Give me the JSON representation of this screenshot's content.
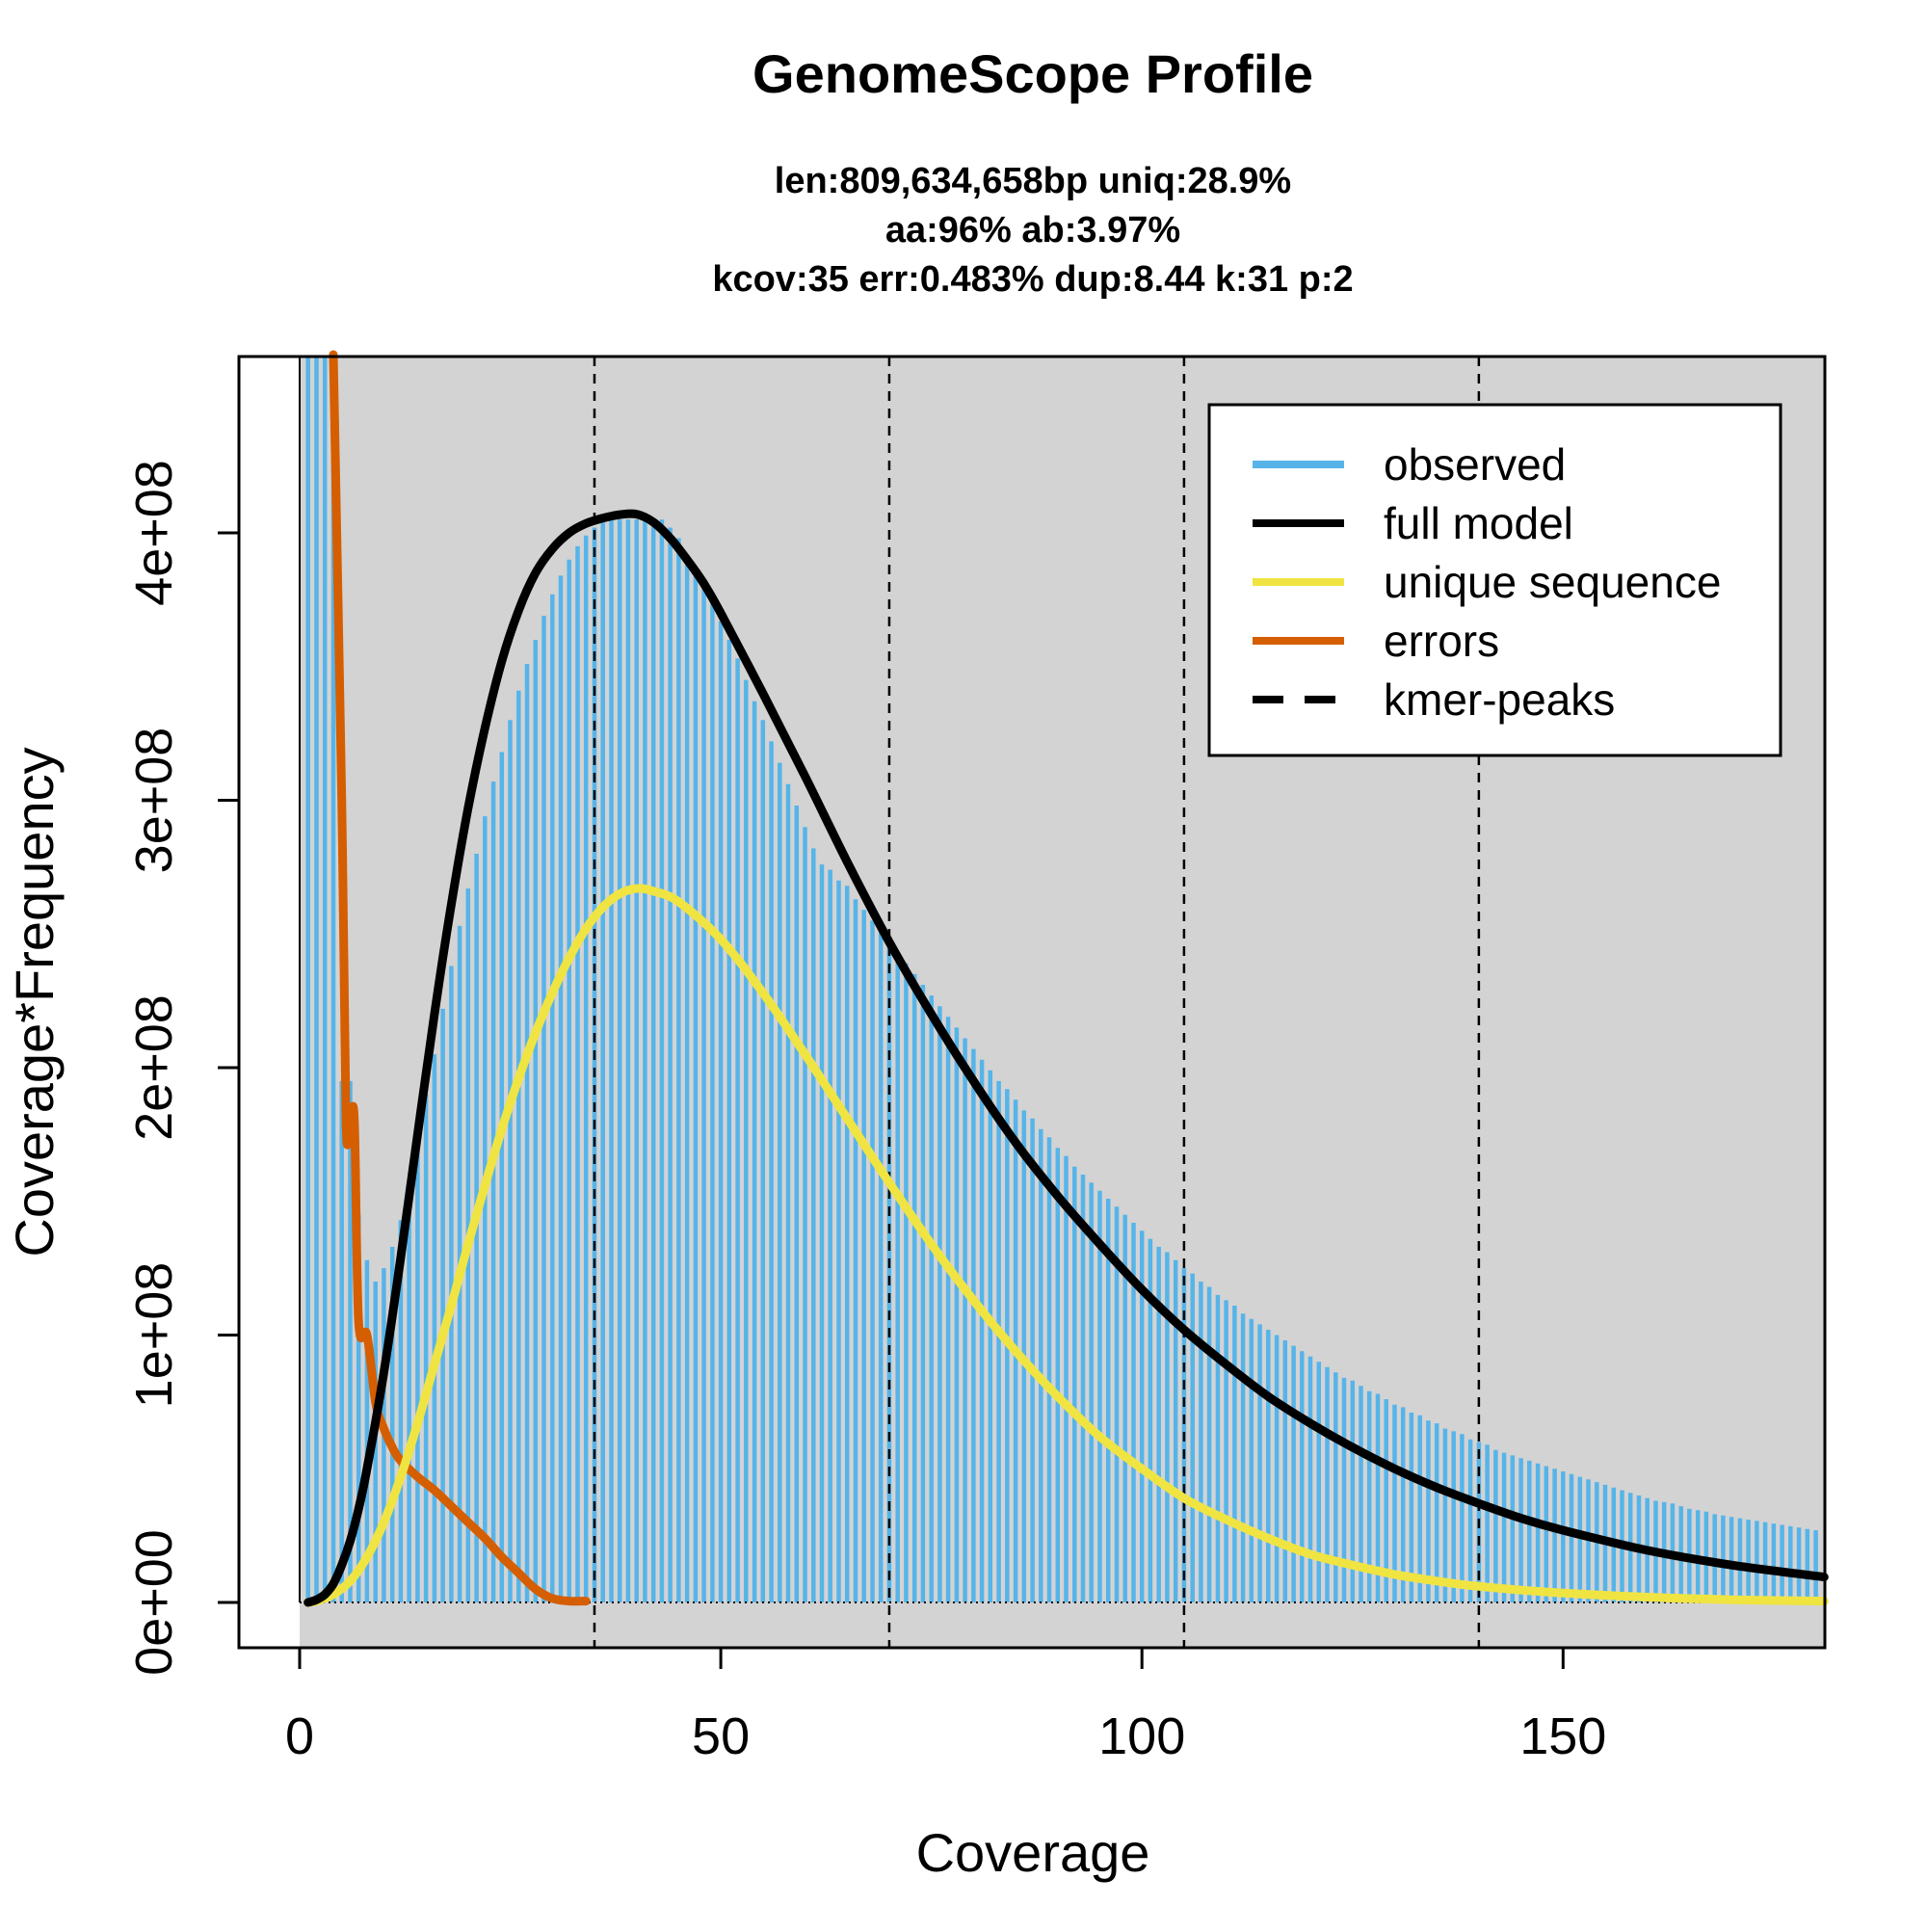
{
  "chart_data": {
    "type": "bar",
    "title": "GenomeScope Profile",
    "subtitle_lines": [
      "len:809,634,658bp uniq:28.9%",
      "aa:96% ab:3.97%",
      "kcov:35 err:0.483%  dup:8.44  k:31 p:2"
    ],
    "xlabel": "Coverage",
    "ylabel": "Coverage*Frequency",
    "xlim": [
      0,
      181
    ],
    "ylim": [
      0,
      467000000
    ],
    "x_ticks": [
      0,
      50,
      100,
      150
    ],
    "x_tick_labels": [
      "0",
      "50",
      "100",
      "150"
    ],
    "y_ticks": [
      0,
      100000000,
      200000000,
      300000000,
      400000000
    ],
    "y_tick_labels": [
      "0e+00",
      "1e+08",
      "2e+08",
      "3e+08",
      "4e+08"
    ],
    "background_color": "#d3d3d3",
    "grid": false,
    "legend_position": "top-right",
    "legend": [
      {
        "label": "observed",
        "color": "#56b4e9",
        "style": "solid"
      },
      {
        "label": "full model",
        "color": "#000000",
        "style": "solid"
      },
      {
        "label": "unique sequence",
        "color": "#f0e442",
        "style": "solid"
      },
      {
        "label": "errors",
        "color": "#d55e00",
        "style": "solid"
      },
      {
        "label": "kmer-peaks",
        "color": "#000000",
        "style": "dashed"
      }
    ],
    "kmer_peaks": [
      35,
      70,
      105,
      140
    ],
    "observed": {
      "name": "observed",
      "color": "#56b4e9",
      "x_start": 1,
      "x_step": 1,
      "values": [
        900000000,
        750000000,
        600000000,
        480000000,
        195000000,
        195000000,
        145000000,
        128000000,
        120000000,
        125000000,
        133000000,
        143000000,
        157000000,
        173000000,
        190000000,
        205000000,
        222000000,
        238000000,
        253000000,
        267000000,
        280000000,
        294000000,
        307000000,
        318000000,
        330000000,
        341000000,
        351000000,
        360000000,
        369000000,
        377000000,
        384000000,
        390000000,
        395000000,
        399000000,
        402000000,
        404000000,
        405000000,
        405000000,
        405000000,
        405000000,
        405000000,
        405000000,
        405000000,
        402000000,
        398000000,
        392000000,
        386000000,
        380000000,
        374000000,
        367000000,
        360000000,
        353000000,
        345000000,
        337000000,
        330000000,
        322000000,
        314000000,
        306000000,
        298000000,
        290000000,
        282000000,
        276000000,
        274000000,
        270000000,
        268000000,
        263000000,
        259000000,
        255000000,
        251000000,
        247000000,
        243000000,
        239000000,
        235000000,
        231000000,
        227000000,
        223000000,
        219000000,
        215000000,
        211000000,
        207000000,
        203000000,
        199000000,
        195000000,
        192000000,
        188000000,
        184000000,
        181000000,
        177000000,
        174000000,
        170000000,
        167000000,
        163000000,
        160000000,
        157000000,
        154000000,
        151000000,
        148000000,
        145000000,
        142000000,
        139000000,
        136000000,
        133000000,
        131000000,
        128000000,
        125000000,
        123000000,
        120000000,
        118000000,
        115000000,
        113000000,
        111000000,
        108000000,
        106000000,
        104000000,
        102000000,
        100000000,
        98000000,
        96000000,
        94000000,
        92000000,
        90000000,
        88000000,
        86000000,
        84000000,
        83000000,
        81000000,
        79000000,
        78000000,
        76000000,
        74000000,
        73000000,
        71000000,
        70000000,
        68000000,
        67000000,
        65000000,
        64000000,
        63000000,
        61000000,
        60000000,
        59000000,
        57000000,
        56000000,
        55000000,
        54000000,
        53000000,
        52000000,
        51000000,
        50000000,
        49000000,
        48000000,
        47000000,
        46000000,
        45000000,
        44000000,
        43000000,
        42000000,
        41000000,
        40000000,
        39000000,
        38000000,
        37500000,
        37000000,
        36000000,
        35000000,
        34500000,
        34000000,
        33000000,
        32500000,
        32000000,
        31500000,
        31000000,
        30500000,
        30000000,
        29500000,
        29000000,
        28500000,
        28000000,
        27500000,
        27000000
      ]
    },
    "full_model": {
      "name": "full model",
      "color": "#000000",
      "x": [
        1,
        2,
        3,
        4,
        5,
        6,
        7,
        8,
        10,
        12,
        14,
        16,
        18,
        20,
        22,
        24,
        26,
        28,
        30,
        32,
        34,
        36,
        38,
        40,
        42,
        44,
        46,
        48,
        50,
        55,
        60,
        65,
        70,
        75,
        80,
        85,
        90,
        95,
        100,
        105,
        110,
        115,
        120,
        125,
        130,
        135,
        140,
        145,
        150,
        160,
        170,
        181
      ],
      "y": [
        0,
        1000000,
        3000000,
        7000000,
        14000000,
        23000000,
        35000000,
        50000000,
        86000000,
        129000000,
        175000000,
        220000000,
        261000000,
        297000000,
        327000000,
        352000000,
        371000000,
        385000000,
        394000000,
        400000000,
        403500000,
        405500000,
        406800000,
        407000000,
        404000000,
        398000000,
        390000000,
        381000000,
        370000000,
        340000000,
        309000000,
        277000000,
        247000000,
        220000000,
        195000000,
        172000000,
        152000000,
        134000000,
        117000000,
        102000000,
        89000000,
        77000000,
        67000000,
        58000000,
        50000000,
        43000000,
        37000000,
        31500000,
        27000000,
        19500000,
        14000000,
        9500000
      ]
    },
    "unique_sequence": {
      "name": "unique sequence",
      "color": "#f0e442",
      "x": [
        1,
        2,
        4,
        6,
        8,
        10,
        12,
        14,
        16,
        18,
        20,
        22,
        24,
        26,
        28,
        30,
        32,
        34,
        36,
        38,
        40,
        42,
        45,
        50,
        55,
        60,
        65,
        70,
        75,
        80,
        85,
        90,
        95,
        100,
        105,
        110,
        115,
        120,
        125,
        130,
        135,
        140,
        150,
        160,
        170,
        181
      ],
      "y": [
        0,
        500000,
        3000000,
        8000000,
        17000000,
        30000000,
        47000000,
        67000000,
        89000000,
        111000000,
        134000000,
        156000000,
        177000000,
        196000000,
        213000000,
        228000000,
        241000000,
        252000000,
        260000000,
        265000000,
        267000000,
        266000000,
        262000000,
        248000000,
        228000000,
        205000000,
        181000000,
        157000000,
        134000000,
        113000000,
        94000000,
        77000000,
        62000000,
        50000000,
        39000000,
        31000000,
        24000000,
        18000000,
        14000000,
        10500000,
        8000000,
        6000000,
        3500000,
        2000000,
        1000000,
        500000
      ]
    },
    "errors": {
      "name": "errors",
      "color": "#d55e00",
      "x": [
        4,
        5,
        5.5,
        6,
        6.5,
        7,
        8,
        9,
        10,
        11,
        12,
        14,
        16,
        18,
        20,
        22,
        24,
        26,
        28,
        30,
        32,
        34
      ],
      "y": [
        467000000,
        300000000,
        180000000,
        180000000,
        180000000,
        105000000,
        100000000,
        75000000,
        65000000,
        58000000,
        53000000,
        47000000,
        42000000,
        36000000,
        30000000,
        24000000,
        17000000,
        11000000,
        5000000,
        1500000,
        500000,
        500000
      ]
    }
  }
}
